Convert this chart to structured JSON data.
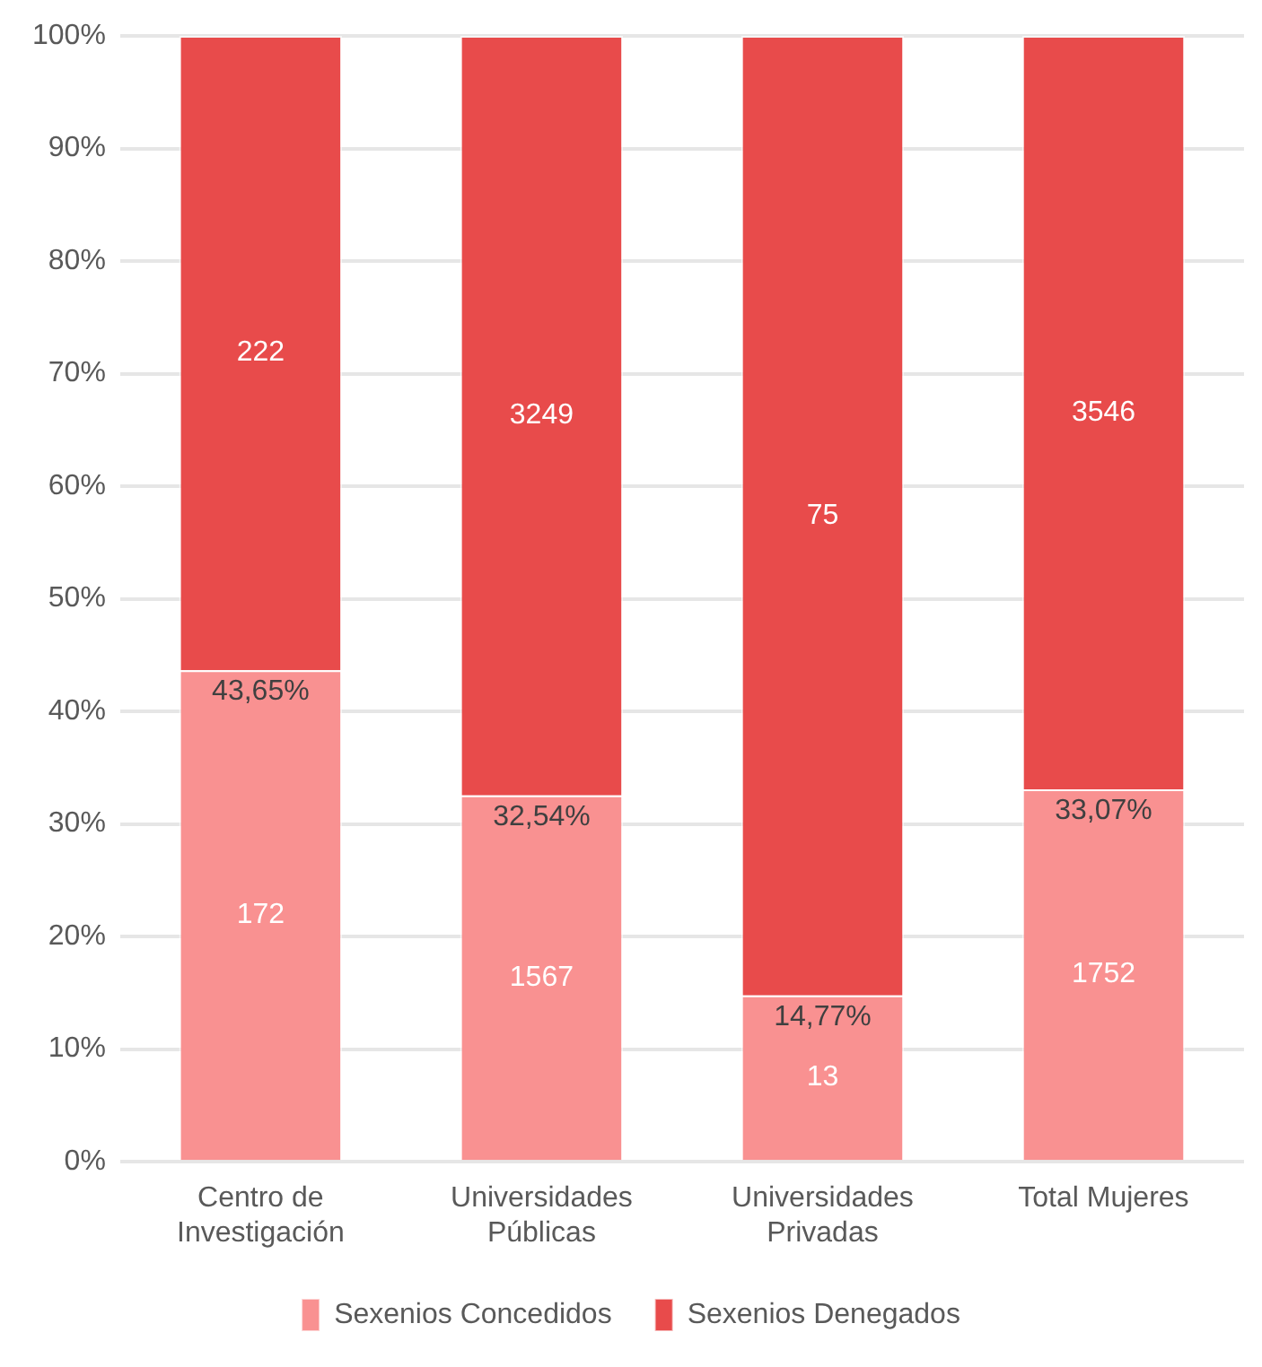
{
  "chart_data": {
    "type": "bar",
    "stacked": true,
    "categories": [
      "Centro de Investigación",
      "Universidades Públicas",
      "Universidades Privadas",
      "Total Mujeres"
    ],
    "series": [
      {
        "name": "Sexenios Concedidos",
        "color": "#f99191",
        "values": [
          43.65,
          32.54,
          14.77,
          33.07
        ]
      },
      {
        "name": "Sexenios Denegados",
        "color": "#e84b4b",
        "values": [
          56.35,
          67.46,
          85.23,
          66.93
        ]
      }
    ],
    "annotations": [
      {
        "text": "43,65%",
        "x": "Centro de Investigación",
        "y": 43.65
      },
      {
        "text": "32,54%",
        "x": "Universidades Públicas",
        "y": 32.54
      },
      {
        "text": "14,77%",
        "x": "Universidades Privadas",
        "y": 14.77
      },
      {
        "text": "33,07%",
        "x": "Total Mujeres",
        "y": 33.07
      },
      "172",
      "1567",
      "13",
      "1752",
      "222",
      "3249",
      "75",
      "3546"
    ],
    "ylim": [
      0,
      100
    ],
    "yticks": [
      {
        "value": 0,
        "label": "0%"
      },
      {
        "value": 10,
        "label": "10%"
      },
      {
        "value": 20,
        "label": "20%"
      },
      {
        "value": 30,
        "label": "30%"
      },
      {
        "value": 40,
        "label": "40%"
      },
      {
        "value": 50,
        "label": "50%"
      },
      {
        "value": 60,
        "label": "60%"
      },
      {
        "value": 70,
        "label": "70%"
      },
      {
        "value": 80,
        "label": "80%"
      },
      {
        "value": 90,
        "label": "90%"
      },
      {
        "value": 100,
        "label": "100%"
      }
    ],
    "grid": "y",
    "legend": "bottom"
  }
}
